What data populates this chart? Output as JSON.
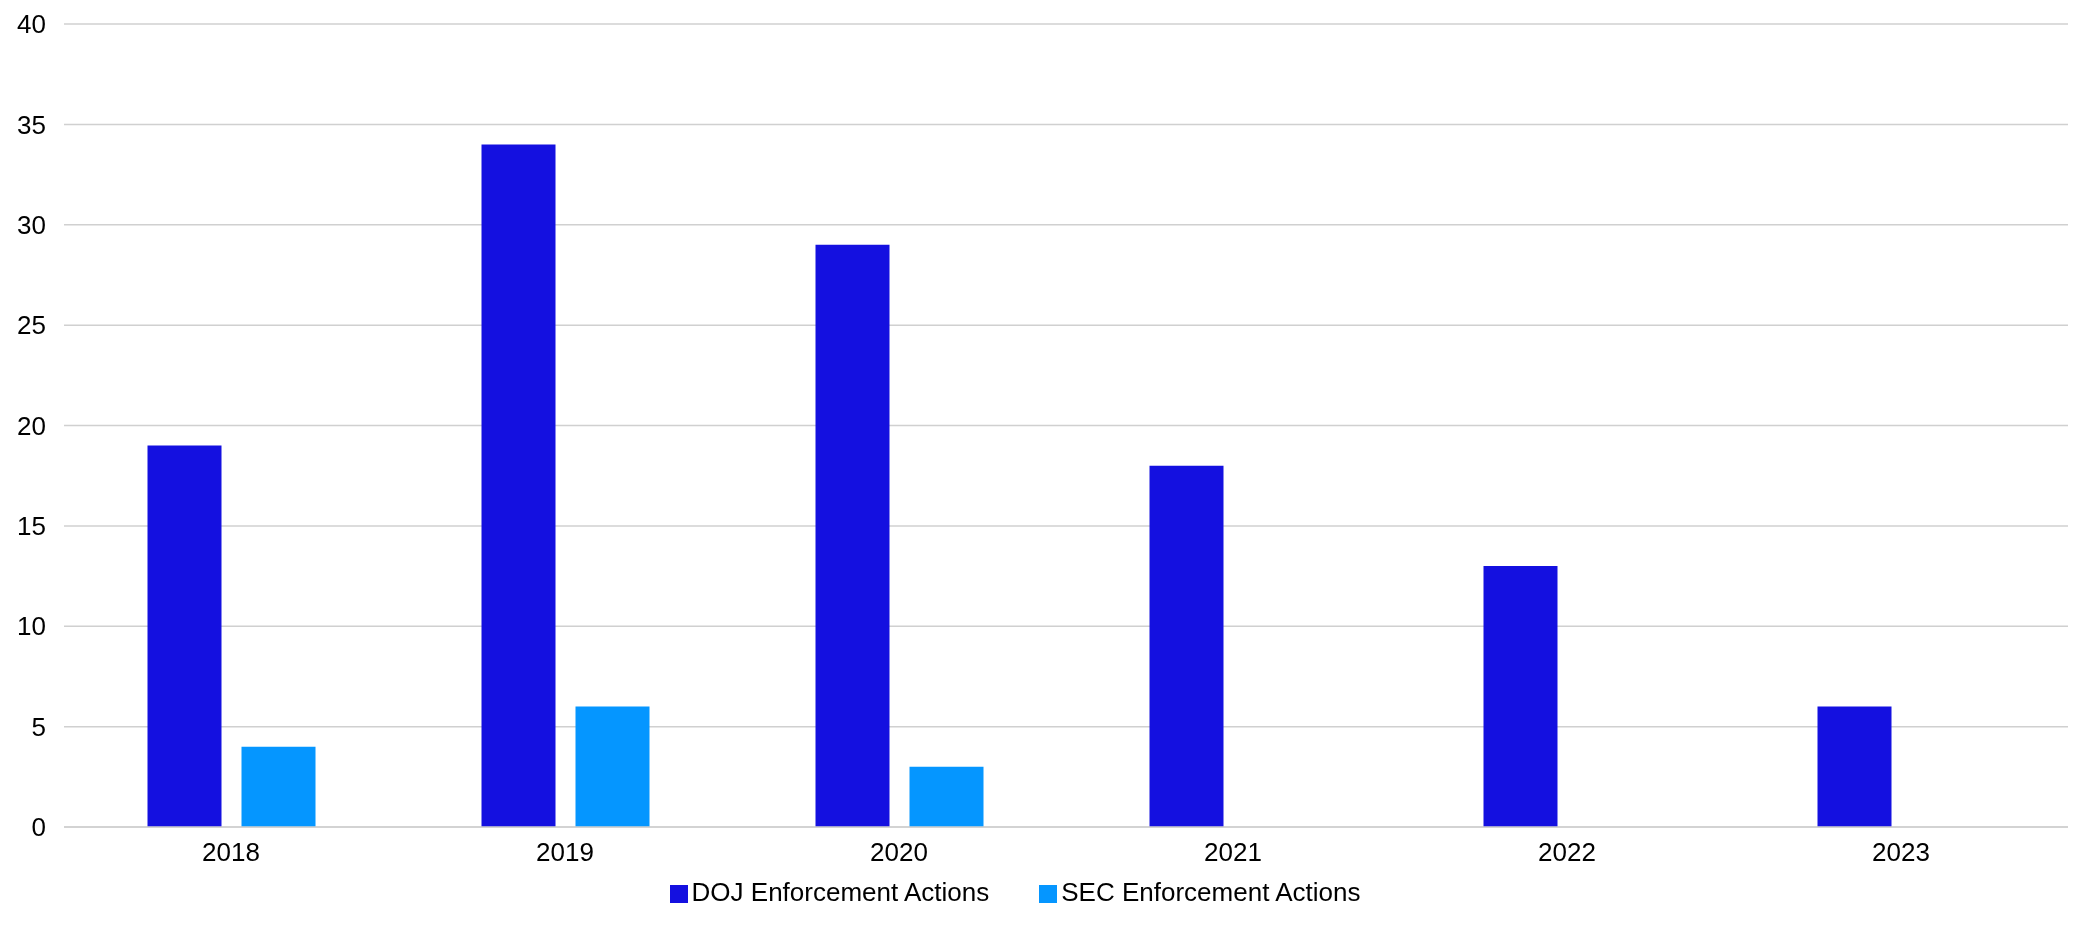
{
  "chart_data": {
    "type": "bar",
    "categories": [
      "2018",
      "2019",
      "2020",
      "2021",
      "2022",
      "2023"
    ],
    "series": [
      {
        "name": "DOJ Enforcement Actions",
        "color": "#1410e0",
        "values": [
          19,
          34,
          29,
          18,
          13,
          6
        ]
      },
      {
        "name": "SEC Enforcement Actions",
        "color": "#0596ff",
        "values": [
          4,
          6,
          3,
          0,
          0,
          0
        ]
      }
    ],
    "ylim": [
      0,
      40
    ],
    "yticks": [
      0,
      5,
      10,
      15,
      20,
      25,
      30,
      35,
      40
    ],
    "grid": "y",
    "legend": "bottom"
  }
}
